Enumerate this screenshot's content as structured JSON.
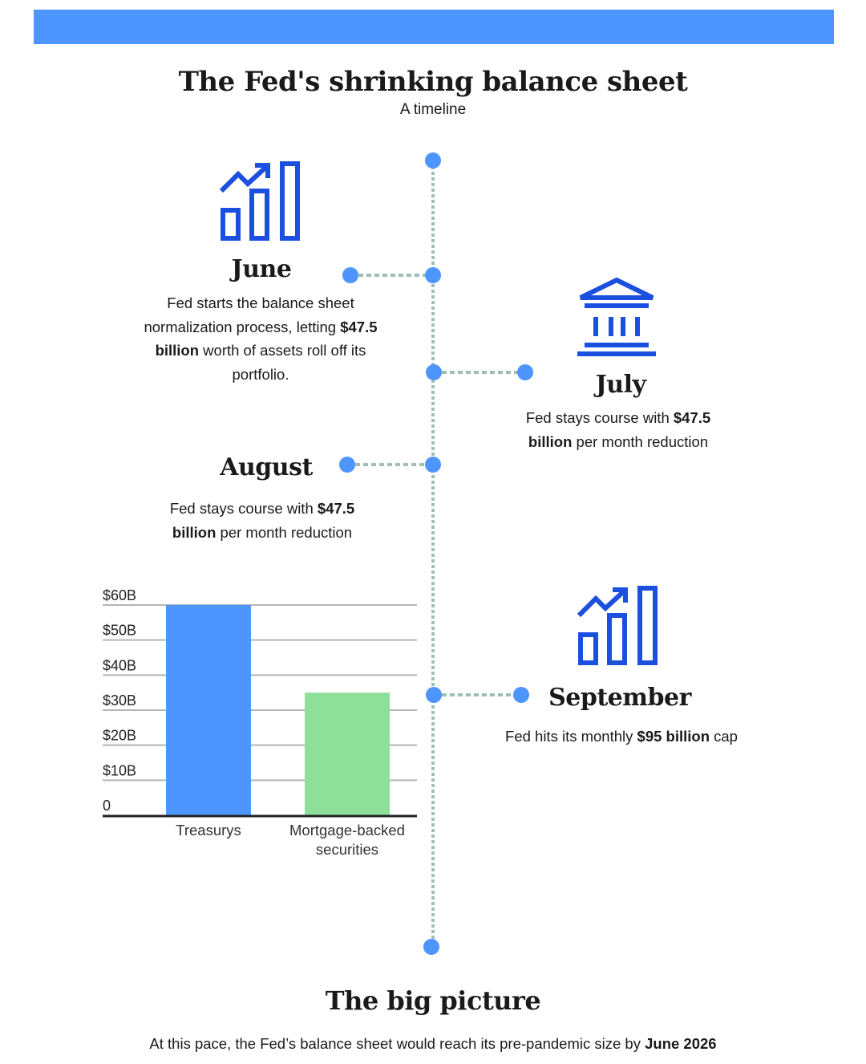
{
  "title": "The Fed's shrinking balance sheet",
  "subtitle": "A timeline",
  "colors": {
    "header_bar": "#4d96ff",
    "timeline_dot": "#4d96ff",
    "timeline_line": "#9fbeb5",
    "icon": "#1b4fe0",
    "bar_treasurys": "#4d96ff",
    "bar_mbs": "#8ddf9a"
  },
  "timeline": {
    "june": {
      "month": "June",
      "icon": "chart-growth-icon",
      "text_1": "Fed starts the balance sheet normalization process, letting",
      "text_bold": "$47.5 billion",
      "text_2": "worth of assets roll off its portfolio."
    },
    "july": {
      "month": "July",
      "icon": "bank-icon",
      "text_1": "Fed stays course with",
      "text_bold": "$47.5 billion",
      "text_2": "per month reduction"
    },
    "august": {
      "month": "August",
      "text_1": "Fed stays course with",
      "text_bold": "$47.5 billion",
      "text_2": "per month reduction"
    },
    "september": {
      "month": "September",
      "icon": "chart-growth-icon",
      "text_1": "Fed hits its monthly",
      "text_bold": "$95 billion",
      "text_2": "cap"
    }
  },
  "chart_data": {
    "type": "bar",
    "categories": [
      "Treasurys",
      "Mortgage-backed securities"
    ],
    "category_lines": [
      [
        "Treasurys"
      ],
      [
        "Mortgage-backed",
        "securities"
      ]
    ],
    "values": [
      60,
      35
    ],
    "unit": "billion USD",
    "ylim": [
      0,
      60
    ],
    "yticks": [
      0,
      10,
      20,
      30,
      40,
      50,
      60
    ],
    "ytick_labels": [
      "0",
      "$10B",
      "$20B",
      "$30B",
      "$40B",
      "$50B",
      "$60B"
    ],
    "grid": true,
    "legend": "none"
  },
  "big_picture": {
    "title": "The big picture",
    "text_1": "At this pace, the Fed’s balance sheet would reach its pre-pandemic size by",
    "text_bold": "June 2026"
  }
}
